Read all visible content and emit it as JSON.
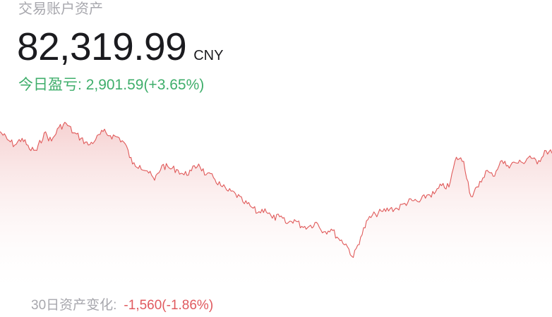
{
  "account": {
    "title": "交易账户资产",
    "balance": "82,319.99",
    "currency": "CNY"
  },
  "today_pnl": {
    "label": "今日盈亏:",
    "amount": "2,901.59",
    "percent": "(+3.65%)"
  },
  "period_change": {
    "label": "30日资产变化:",
    "amount": "-1,560",
    "percent": "(-1.86%)"
  },
  "colors": {
    "up": "#3fae6b",
    "down": "#e0595e",
    "line": "#e05a5a",
    "muted": "#a7a7ad"
  },
  "chart_data": {
    "type": "area",
    "title": "",
    "xlabel": "",
    "ylabel": "",
    "grid": false,
    "ylim": [
      79000,
      85500
    ],
    "values": [
      84650,
      84350,
      84150,
      84400,
      84000,
      83950,
      84600,
      84300,
      84800,
      84950,
      84600,
      84400,
      84150,
      84350,
      84650,
      84500,
      84450,
      84200,
      83450,
      83400,
      83200,
      82850,
      83400,
      83300,
      83250,
      83050,
      83200,
      83450,
      83050,
      82950,
      82650,
      82450,
      82350,
      82050,
      81900,
      81650,
      81800,
      81450,
      81500,
      81250,
      81400,
      81150,
      81150,
      81300,
      80950,
      81050,
      80700,
      80500,
      80000,
      80750,
      81400,
      81600,
      81700,
      81800,
      81800,
      82000,
      82100,
      82050,
      82300,
      82350,
      82650,
      82600,
      83700,
      83550,
      82250,
      82600,
      83200,
      83000,
      83550,
      83400,
      83500,
      83500,
      83750,
      83450,
      83950,
      83850
    ]
  }
}
